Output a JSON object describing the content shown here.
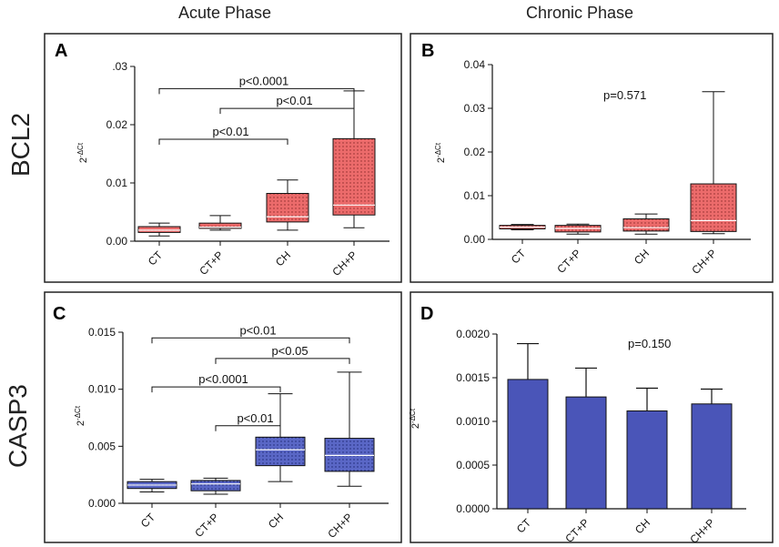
{
  "headers": {
    "acute": "Acute Phase",
    "chronic": "Chronic Phase"
  },
  "row_labels": {
    "top": "BCL2",
    "bottom": "CASP3"
  },
  "chart_data": [
    {
      "id": "A",
      "type": "box",
      "gene": "BCL2",
      "phase": "Acute Phase",
      "ylabel": "2^-ΔCt",
      "ylabel_base": "2",
      "ylabel_exp": "-ΔCt",
      "ylim": [
        0,
        0.03
      ],
      "yticks": [
        {
          "v": 0,
          "l": "0.00"
        },
        {
          "v": 0.01,
          "l": "0.01"
        },
        {
          "v": 0.02,
          "l": "0.02"
        },
        {
          "v": 0.03,
          "l": ".03"
        }
      ],
      "categories": [
        "CT",
        "CT+P",
        "CH",
        "CH+P"
      ],
      "boxes": [
        {
          "min": 0.0009,
          "q1": 0.0015,
          "median": 0.0019,
          "q3": 0.0025,
          "max": 0.0031
        },
        {
          "min": 0.0019,
          "q1": 0.0022,
          "median": 0.0024,
          "q3": 0.0031,
          "max": 0.0044
        },
        {
          "min": 0.0019,
          "q1": 0.0033,
          "median": 0.0042,
          "q3": 0.0082,
          "max": 0.0105
        },
        {
          "min": 0.0023,
          "q1": 0.0045,
          "median": 0.0062,
          "q3": 0.0176,
          "max": 0.0258
        }
      ],
      "comparisons": [
        {
          "from": 0,
          "to": 3,
          "y": 0.0262,
          "label": "p<0.0001"
        },
        {
          "from": 1,
          "to": 3,
          "y": 0.0228,
          "label": "p<0.01"
        },
        {
          "from": 0,
          "to": 2,
          "y": 0.0175,
          "label": "p<0.01"
        }
      ],
      "color": "#ec6b6b"
    },
    {
      "id": "B",
      "type": "box",
      "gene": "BCL2",
      "phase": "Chronic Phase",
      "ylabel": "2^-ΔCt",
      "ylabel_base": "2",
      "ylabel_exp": "-ΔCt",
      "ylim": [
        0,
        0.04
      ],
      "yticks": [
        {
          "v": 0,
          "l": "0.00"
        },
        {
          "v": 0.01,
          "l": "0.01"
        },
        {
          "v": 0.02,
          "l": "0.02"
        },
        {
          "v": 0.03,
          "l": "0.03"
        },
        {
          "v": 0.04,
          "l": "0.04"
        }
      ],
      "categories": [
        "CT",
        "CT+P",
        "CH",
        "CH+P"
      ],
      "boxes": [
        {
          "min": 0.0022,
          "q1": 0.0024,
          "median": 0.0028,
          "q3": 0.0032,
          "max": 0.0034
        },
        {
          "min": 0.0012,
          "q1": 0.0017,
          "median": 0.0025,
          "q3": 0.0032,
          "max": 0.0035
        },
        {
          "min": 0.0012,
          "q1": 0.0019,
          "median": 0.0027,
          "q3": 0.0047,
          "max": 0.0058
        },
        {
          "min": 0.0013,
          "q1": 0.0018,
          "median": 0.0043,
          "q3": 0.0127,
          "max": 0.0338
        }
      ],
      "pvalue": "p=0.571",
      "color": "#ec6b6b"
    },
    {
      "id": "C",
      "type": "box",
      "gene": "CASP3",
      "phase": "Acute Phase",
      "ylabel": "2^-ΔCt",
      "ylabel_base": "2",
      "ylabel_exp": "-ΔCt",
      "ylim": [
        0,
        0.015
      ],
      "yticks": [
        {
          "v": 0,
          "l": "0.000"
        },
        {
          "v": 0.005,
          "l": "0.005"
        },
        {
          "v": 0.01,
          "l": "0.010"
        },
        {
          "v": 0.015,
          "l": "0.015"
        }
      ],
      "categories": [
        "CT",
        "CT+P",
        "CH",
        "CH+P"
      ],
      "boxes": [
        {
          "min": 0.001,
          "q1": 0.0013,
          "median": 0.0016,
          "q3": 0.0019,
          "max": 0.0021
        },
        {
          "min": 0.0008,
          "q1": 0.0011,
          "median": 0.0017,
          "q3": 0.002,
          "max": 0.0022
        },
        {
          "min": 0.0019,
          "q1": 0.0033,
          "median": 0.0047,
          "q3": 0.0058,
          "max": 0.0096
        },
        {
          "min": 0.0015,
          "q1": 0.0028,
          "median": 0.0042,
          "q3": 0.0057,
          "max": 0.0115
        }
      ],
      "comparisons": [
        {
          "from": 0,
          "to": 3,
          "y": 0.0145,
          "label": "p<0.01"
        },
        {
          "from": 1,
          "to": 3,
          "y": 0.0127,
          "label": "p<0.05"
        },
        {
          "from": 0,
          "to": 2,
          "y": 0.0102,
          "label": "p<0.0001"
        },
        {
          "from": 1,
          "to": 2,
          "y": 0.0068,
          "label": "p<0.01"
        }
      ],
      "color": "#5560c0"
    },
    {
      "id": "D",
      "type": "bar",
      "gene": "CASP3",
      "phase": "Chronic Phase",
      "ylabel": "2^-ΔCt",
      "ylabel_base": "2",
      "ylabel_exp": "-ΔCt",
      "ylim": [
        0,
        0.002
      ],
      "yticks": [
        {
          "v": 0,
          "l": "0.0000"
        },
        {
          "v": 0.0005,
          "l": "0.0005"
        },
        {
          "v": 0.001,
          "l": "0.0010"
        },
        {
          "v": 0.0015,
          "l": "0.0015"
        },
        {
          "v": 0.002,
          "l": "0.0020"
        }
      ],
      "categories": [
        "CT",
        "CT+P",
        "CH",
        "CH+P"
      ],
      "values": [
        0.00148,
        0.00128,
        0.00112,
        0.0012
      ],
      "errors": [
        0.00041,
        0.00033,
        0.00026,
        0.00017
      ],
      "pvalue": "p=0.150",
      "color": "#4a55b8"
    }
  ]
}
